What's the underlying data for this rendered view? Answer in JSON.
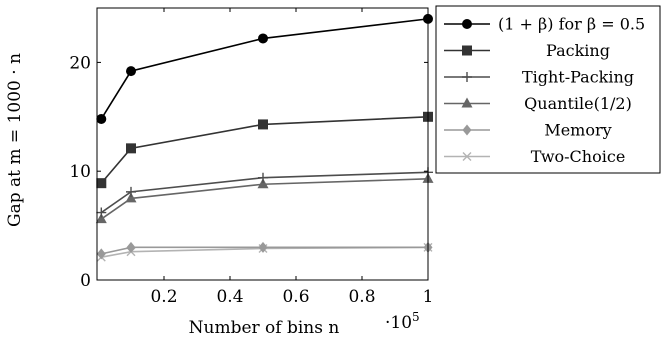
{
  "chart_data": {
    "type": "line",
    "xlabel": "Number of bins n",
    "x_multiplier": "·10",
    "x_multiplier_exp": "5",
    "ylabel": "Gap at m = 1000 · n",
    "xlim": [
      0.01,
      1.0
    ],
    "ylim": [
      0,
      25
    ],
    "x_ticks": [
      0.2,
      0.4,
      0.6,
      0.8,
      1.0
    ],
    "x_tick_labels": [
      "0.2",
      "0.4",
      "0.6",
      "0.8",
      "1"
    ],
    "y_ticks": [
      0,
      10,
      20
    ],
    "y_tick_labels": [
      "0",
      "10",
      "20"
    ],
    "grid": false,
    "legend_position": "top-right-outside",
    "x": [
      0.01,
      0.1,
      0.5,
      1.0
    ],
    "series": [
      {
        "name": "(1 + β) for β = 0.5",
        "values": [
          14.8,
          19.2,
          22.2,
          24.0
        ],
        "color": "#000000",
        "marker": "circle"
      },
      {
        "name": "Packing",
        "values": [
          8.9,
          12.1,
          14.3,
          15.0
        ],
        "color": "#333333",
        "marker": "square"
      },
      {
        "name": "Tight-Packing",
        "values": [
          6.2,
          8.1,
          9.4,
          9.9
        ],
        "color": "#4d4d4d",
        "marker": "plus"
      },
      {
        "name": "Quantile(1/2)",
        "values": [
          5.6,
          7.5,
          8.8,
          9.3
        ],
        "color": "#666666",
        "marker": "triangle"
      },
      {
        "name": "Memory",
        "values": [
          2.4,
          3.0,
          3.0,
          3.0
        ],
        "color": "#999999",
        "marker": "diamond"
      },
      {
        "name": "Two-Choice",
        "values": [
          2.1,
          2.6,
          2.9,
          3.0
        ],
        "color": "#b3b3b3",
        "marker": "x"
      }
    ]
  }
}
